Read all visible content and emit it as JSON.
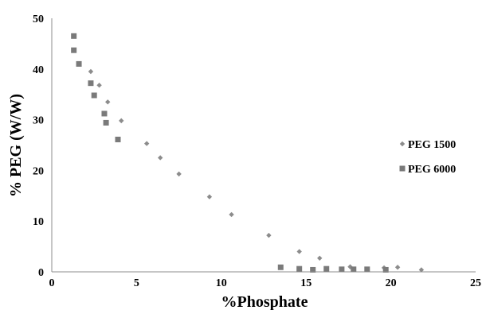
{
  "chart_data": {
    "type": "scatter",
    "xlabel": "%Phosphate",
    "ylabel": "% PEG (W/W)",
    "xlim": [
      0,
      25
    ],
    "ylim": [
      0,
      50
    ],
    "xticks": [
      0,
      5,
      10,
      15,
      20,
      25
    ],
    "yticks": [
      0,
      10,
      20,
      30,
      40,
      50
    ],
    "grid": false,
    "legend": "right",
    "series": [
      {
        "name": "PEG 1500",
        "marker": "diamond",
        "color": "#8c8c8c",
        "points": [
          [
            2.3,
            39.5
          ],
          [
            2.8,
            36.8
          ],
          [
            3.3,
            33.5
          ],
          [
            4.1,
            29.8
          ],
          [
            5.6,
            25.3
          ],
          [
            6.4,
            22.5
          ],
          [
            7.5,
            19.3
          ],
          [
            9.3,
            14.8
          ],
          [
            10.6,
            11.3
          ],
          [
            12.8,
            7.2
          ],
          [
            14.6,
            4.0
          ],
          [
            15.8,
            2.7
          ],
          [
            17.6,
            1.0
          ],
          [
            19.6,
            0.8
          ],
          [
            20.4,
            0.9
          ],
          [
            21.8,
            0.4
          ]
        ]
      },
      {
        "name": "PEG 6000",
        "marker": "square",
        "color": "#7a7a7a",
        "points": [
          [
            1.3,
            46.5
          ],
          [
            1.3,
            43.7
          ],
          [
            1.6,
            41.0
          ],
          [
            2.3,
            37.2
          ],
          [
            2.5,
            34.8
          ],
          [
            3.1,
            31.2
          ],
          [
            3.2,
            29.4
          ],
          [
            3.9,
            26.1
          ],
          [
            13.5,
            0.9
          ],
          [
            14.6,
            0.6
          ],
          [
            15.4,
            0.4
          ],
          [
            16.2,
            0.6
          ],
          [
            17.1,
            0.5
          ],
          [
            17.8,
            0.5
          ],
          [
            18.6,
            0.5
          ],
          [
            19.7,
            0.4
          ]
        ]
      }
    ]
  }
}
